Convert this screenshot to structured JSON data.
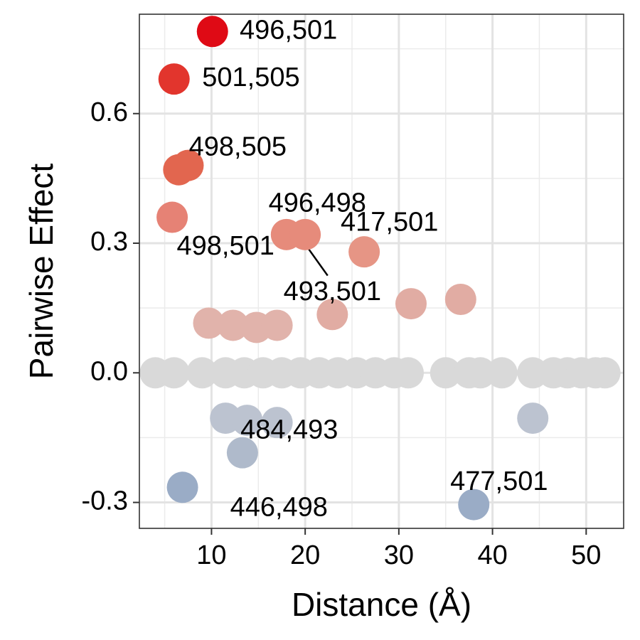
{
  "chart_data": {
    "type": "scatter",
    "title": "",
    "xlabel": "Distance (Å)",
    "ylabel": "Pairwise Effect",
    "xlim": [
      2.3,
      54
    ],
    "ylim": [
      -0.36,
      0.83
    ],
    "xticks": [
      10,
      20,
      30,
      40,
      50
    ],
    "yticks": [
      -0.3,
      0.0,
      0.3,
      0.6
    ],
    "ytick_labels": [
      "-0.3",
      "0.0",
      "0.3",
      "0.6"
    ],
    "grid": true,
    "color_scale": {
      "low": "#9aacc6",
      "mid": "#d9d9d9",
      "high": "#df0a15"
    },
    "points": [
      {
        "x": 10.1,
        "y": 0.79,
        "color": "#df0a15",
        "label": "496,501"
      },
      {
        "x": 6.0,
        "y": 0.68,
        "color": "#e2352d",
        "label": "501,505"
      },
      {
        "x": 7.5,
        "y": 0.48,
        "color": "#e2664f",
        "label": ""
      },
      {
        "x": 6.5,
        "y": 0.47,
        "color": "#e2664f",
        "label": "498,505"
      },
      {
        "x": 5.8,
        "y": 0.36,
        "color": "#e68275",
        "label": "498,501"
      },
      {
        "x": 18.0,
        "y": 0.32,
        "color": "#e68b7b",
        "label": "496,498"
      },
      {
        "x": 20.0,
        "y": 0.32,
        "color": "#e68b7b",
        "label": "493,501"
      },
      {
        "x": 26.3,
        "y": 0.28,
        "color": "#e69585",
        "label": "417,501"
      },
      {
        "x": 9.7,
        "y": 0.115,
        "color": "#e1b3ab",
        "label": ""
      },
      {
        "x": 12.3,
        "y": 0.11,
        "color": "#e1b3ab",
        "label": ""
      },
      {
        "x": 14.8,
        "y": 0.105,
        "color": "#e1b3ab",
        "label": ""
      },
      {
        "x": 17.0,
        "y": 0.11,
        "color": "#e1b3ab",
        "label": ""
      },
      {
        "x": 22.9,
        "y": 0.135,
        "color": "#e1aca3",
        "label": ""
      },
      {
        "x": 31.3,
        "y": 0.16,
        "color": "#e1aca3",
        "label": ""
      },
      {
        "x": 36.6,
        "y": 0.17,
        "color": "#e1aca3",
        "label": ""
      },
      {
        "x": 4.0,
        "y": 0.0,
        "color": "#d9d9d9",
        "label": ""
      },
      {
        "x": 6.0,
        "y": 0.0,
        "color": "#d9d9d9",
        "label": ""
      },
      {
        "x": 9.0,
        "y": 0.0,
        "color": "#d9d9d9",
        "label": ""
      },
      {
        "x": 11.5,
        "y": 0.0,
        "color": "#d9d9d9",
        "label": ""
      },
      {
        "x": 13.5,
        "y": 0.0,
        "color": "#d9d9d9",
        "label": ""
      },
      {
        "x": 15.5,
        "y": 0.0,
        "color": "#d9d9d9",
        "label": ""
      },
      {
        "x": 17.5,
        "y": 0.0,
        "color": "#d9d9d9",
        "label": ""
      },
      {
        "x": 19.5,
        "y": 0.0,
        "color": "#d9d9d9",
        "label": ""
      },
      {
        "x": 21.5,
        "y": 0.0,
        "color": "#d9d9d9",
        "label": ""
      },
      {
        "x": 23.5,
        "y": 0.0,
        "color": "#d9d9d9",
        "label": ""
      },
      {
        "x": 25.5,
        "y": 0.0,
        "color": "#d9d9d9",
        "label": ""
      },
      {
        "x": 27.5,
        "y": 0.0,
        "color": "#d9d9d9",
        "label": ""
      },
      {
        "x": 29.5,
        "y": 0.0,
        "color": "#d9d9d9",
        "label": ""
      },
      {
        "x": 31.0,
        "y": 0.0,
        "color": "#d9d9d9",
        "label": ""
      },
      {
        "x": 35.0,
        "y": 0.0,
        "color": "#d9d9d9",
        "label": ""
      },
      {
        "x": 37.5,
        "y": 0.0,
        "color": "#d9d9d9",
        "label": ""
      },
      {
        "x": 38.7,
        "y": 0.0,
        "color": "#d9d9d9",
        "label": ""
      },
      {
        "x": 41.0,
        "y": 0.0,
        "color": "#d9d9d9",
        "label": ""
      },
      {
        "x": 44.3,
        "y": 0.0,
        "color": "#d9d9d9",
        "label": ""
      },
      {
        "x": 46.5,
        "y": 0.0,
        "color": "#d9d9d9",
        "label": ""
      },
      {
        "x": 48.0,
        "y": 0.0,
        "color": "#d9d9d9",
        "label": ""
      },
      {
        "x": 49.5,
        "y": 0.0,
        "color": "#d9d9d9",
        "label": ""
      },
      {
        "x": 51.0,
        "y": 0.0,
        "color": "#d9d9d9",
        "label": ""
      },
      {
        "x": 52.0,
        "y": 0.0,
        "color": "#d9d9d9",
        "label": ""
      },
      {
        "x": 11.5,
        "y": -0.105,
        "color": "#bcc3d0",
        "label": ""
      },
      {
        "x": 13.8,
        "y": -0.11,
        "color": "#bcc3d0",
        "label": ""
      },
      {
        "x": 17.0,
        "y": -0.115,
        "color": "#bcc3d0",
        "label": "484,493"
      },
      {
        "x": 44.3,
        "y": -0.105,
        "color": "#bcc3d0",
        "label": ""
      },
      {
        "x": 13.3,
        "y": -0.185,
        "color": "#afbacb",
        "label": ""
      },
      {
        "x": 6.9,
        "y": -0.265,
        "color": "#9aacc6",
        "label": "446,498"
      },
      {
        "x": 38.0,
        "y": -0.305,
        "color": "#9aacc6",
        "label": "477,501"
      }
    ],
    "annotations": [
      {
        "text": "496,501",
        "x": 13.0,
        "y": 0.79,
        "anchor": "start"
      },
      {
        "text": "501,505",
        "x": 9.0,
        "y": 0.68,
        "anchor": "start"
      },
      {
        "text": "498,505",
        "x": 12.8,
        "y": 0.52,
        "anchor": "middle"
      },
      {
        "text": "498,501",
        "x": 11.5,
        "y": 0.29,
        "anchor": "middle"
      },
      {
        "text": "496,498",
        "x": 21.3,
        "y": 0.39,
        "anchor": "middle"
      },
      {
        "text": "417,501",
        "x": 29.0,
        "y": 0.345,
        "anchor": "middle"
      },
      {
        "text": "493,501",
        "x": 22.9,
        "y": 0.185,
        "anchor": "middle"
      },
      {
        "text": "484,493",
        "x": 18.3,
        "y": -0.135,
        "anchor": "middle"
      },
      {
        "text": "446,498",
        "x": 17.2,
        "y": -0.315,
        "anchor": "middle"
      },
      {
        "text": "477,501",
        "x": 40.7,
        "y": -0.255,
        "anchor": "middle"
      }
    ],
    "leader_lines": [
      {
        "from": [
          19.6,
          0.31
        ],
        "to": [
          22.4,
          0.225
        ]
      }
    ]
  }
}
